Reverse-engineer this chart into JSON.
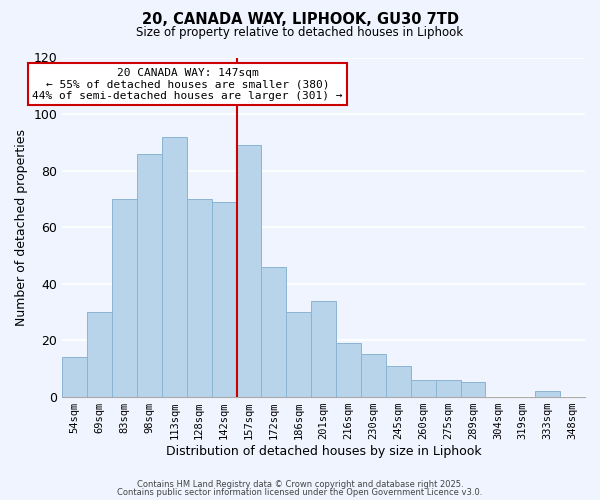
{
  "title": "20, CANADA WAY, LIPHOOK, GU30 7TD",
  "subtitle": "Size of property relative to detached houses in Liphook",
  "xlabel": "Distribution of detached houses by size in Liphook",
  "ylabel": "Number of detached properties",
  "bar_labels": [
    "54sqm",
    "69sqm",
    "83sqm",
    "98sqm",
    "113sqm",
    "128sqm",
    "142sqm",
    "157sqm",
    "172sqm",
    "186sqm",
    "201sqm",
    "216sqm",
    "230sqm",
    "245sqm",
    "260sqm",
    "275sqm",
    "289sqm",
    "304sqm",
    "319sqm",
    "333sqm",
    "348sqm"
  ],
  "bar_values": [
    14,
    30,
    70,
    86,
    92,
    70,
    69,
    89,
    46,
    30,
    34,
    19,
    15,
    11,
    6,
    6,
    5,
    0,
    0,
    2,
    0
  ],
  "bar_color": "#b8d4ea",
  "bar_edge_color": "#8ab4d4",
  "vline_x": 6.5,
  "vline_color": "#cc0000",
  "annotation_title": "20 CANADA WAY: 147sqm",
  "annotation_line1": "← 55% of detached houses are smaller (380)",
  "annotation_line2": "44% of semi-detached houses are larger (301) →",
  "annotation_box_color": "#ffffff",
  "annotation_box_edge": "#cc0000",
  "ylim": [
    0,
    120
  ],
  "yticks": [
    0,
    20,
    40,
    60,
    80,
    100,
    120
  ],
  "footer1": "Contains HM Land Registry data © Crown copyright and database right 2025.",
  "footer2": "Contains public sector information licensed under the Open Government Licence v3.0.",
  "background_color": "#f0f4ff",
  "grid_color": "#ffffff"
}
